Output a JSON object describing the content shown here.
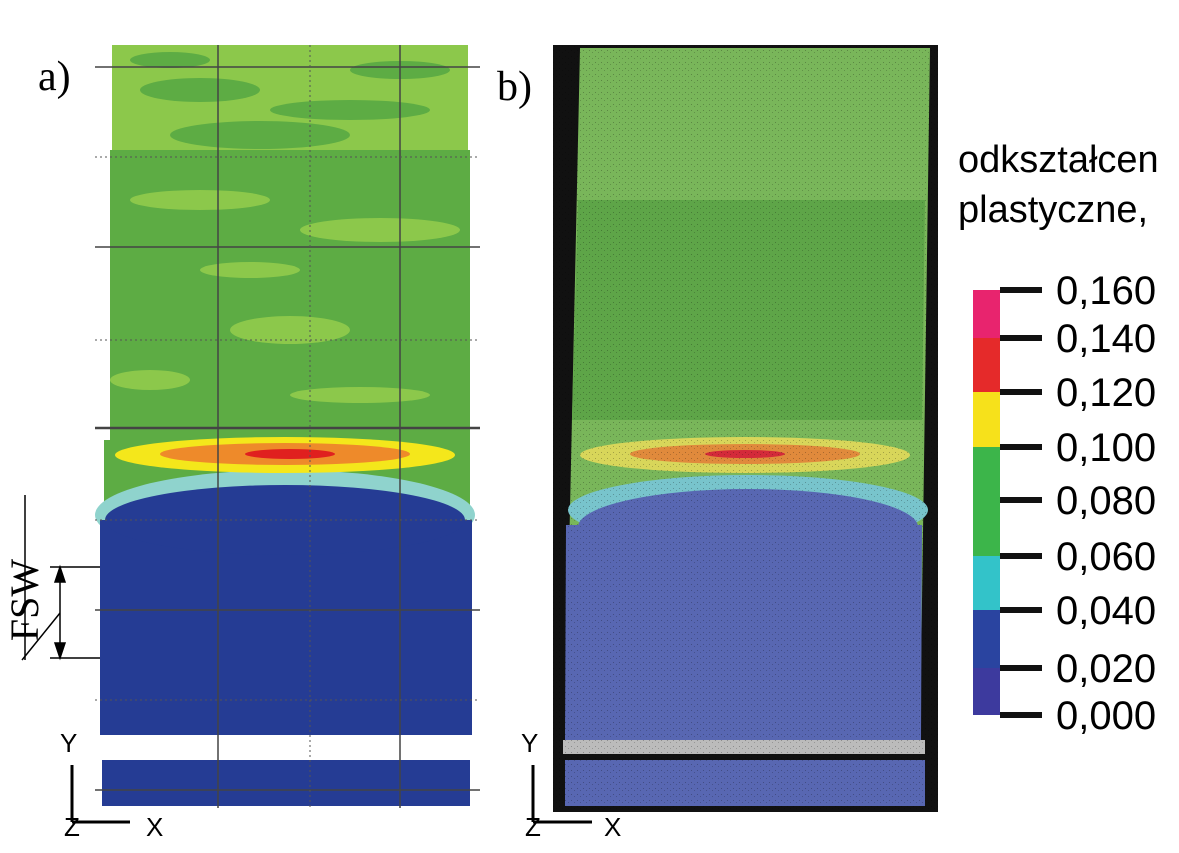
{
  "panels": [
    {
      "label": "a)"
    },
    {
      "label": "b)"
    }
  ],
  "annotation": "FSW",
  "axes_icon": {
    "y": "Y",
    "z": "Z",
    "x": "X"
  },
  "legend": {
    "title": [
      "odkształcen",
      "plastyczne,"
    ],
    "ticks": [
      "0,160",
      "0,140",
      "0,120",
      "0,100",
      "0,080",
      "0,060",
      "0,040",
      "0,020",
      "0,000"
    ]
  }
}
